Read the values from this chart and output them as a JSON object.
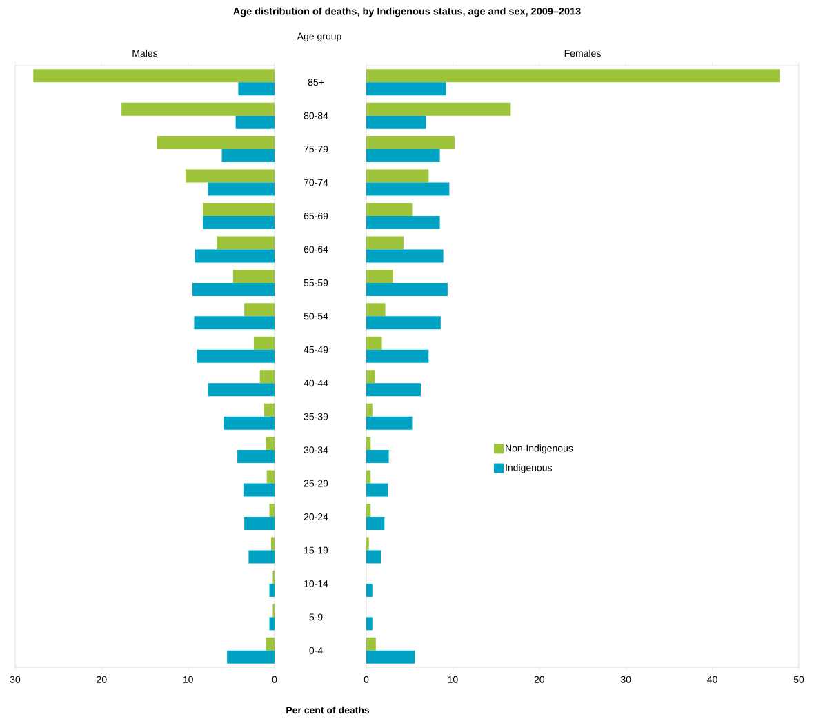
{
  "chart_data": [
    {
      "type": "bar",
      "orientation": "horizontal",
      "subtitle": "Males",
      "ylabel": "Age group",
      "xlabel": "Per cent of deaths",
      "categories": [
        "85+",
        "80-84",
        "75-79",
        "70-74",
        "65-69",
        "60-64",
        "55-59",
        "50-54",
        "45-49",
        "40-44",
        "35-39",
        "30-34",
        "25-29",
        "20-24",
        "15-19",
        "10-14",
        "5-9",
        "0-4"
      ],
      "series": [
        {
          "color": "#9dc43b",
          "values": [
            27.9,
            17.7,
            13.6,
            10.3,
            8.3,
            6.7,
            4.8,
            3.5,
            2.4,
            1.7,
            1.2,
            1.0,
            0.9,
            0.6,
            0.4,
            0.2,
            0.2,
            1.0
          ]
        },
        {
          "color": "#00a3c4",
          "values": [
            4.2,
            4.5,
            6.1,
            7.7,
            8.3,
            9.2,
            9.5,
            9.3,
            9.0,
            7.7,
            5.9,
            4.3,
            3.6,
            3.5,
            3.0,
            0.6,
            0.6,
            5.5
          ]
        }
      ],
      "xlim": [
        30,
        0
      ],
      "xticks": [
        30,
        20,
        10,
        0
      ]
    },
    {
      "type": "bar",
      "orientation": "horizontal",
      "title": "Age distribution of deaths, by Indigenous status, age and sex, 2009–2013",
      "subtitle": "Females",
      "tick_labels": "x",
      "legend": "bottom",
      "categories": [
        null,
        null,
        null,
        null,
        null,
        null,
        null,
        null,
        null,
        null,
        null,
        null,
        null,
        null,
        null,
        null,
        null,
        null
      ],
      "series": [
        {
          "name": "Non-Indigenous",
          "color": "#9dc43b",
          "values": [
            47.8,
            16.7,
            10.2,
            7.2,
            5.3,
            4.3,
            3.1,
            2.2,
            1.8,
            1.0,
            0.7,
            0.5,
            0.5,
            0.5,
            0.3,
            0,
            0,
            1.1
          ]
        },
        {
          "name": "Indigenous",
          "color": "#00a3c4",
          "values": [
            9.2,
            6.9,
            8.5,
            9.6,
            8.5,
            8.9,
            9.4,
            8.6,
            7.2,
            6.3,
            5.3,
            2.6,
            2.5,
            2.1,
            1.7,
            0.7,
            0.7,
            5.6
          ]
        }
      ],
      "xlim": [
        0,
        50
      ],
      "xticks": [
        0,
        10,
        20,
        30,
        40,
        50
      ]
    }
  ]
}
